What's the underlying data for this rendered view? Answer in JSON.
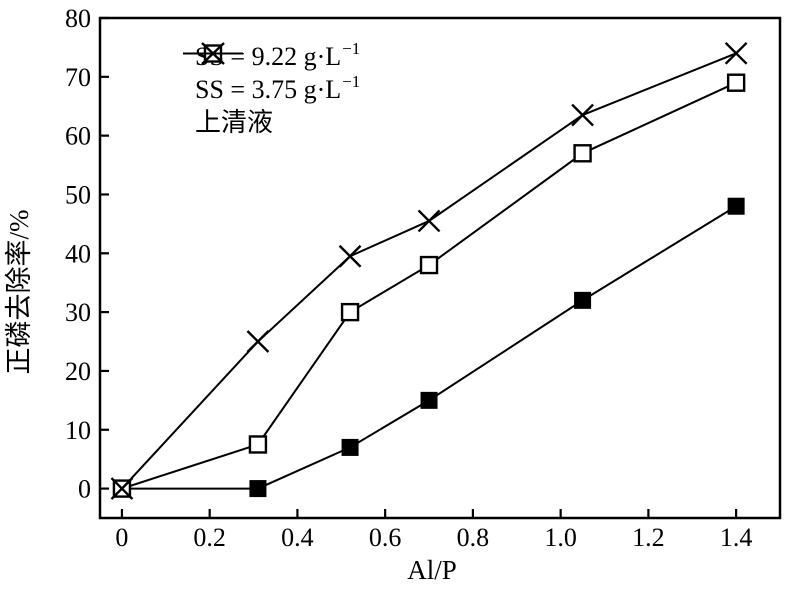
{
  "figure": {
    "background": "#ffffff",
    "ink_color": "#000000"
  },
  "chart_data": {
    "type": "line",
    "xlabel": "Al/P",
    "ylabel": "正磷去除率/%",
    "xlim": [
      -0.05,
      1.5
    ],
    "ylim": [
      -5,
      80
    ],
    "grid": false,
    "legend_position": "upper-left-inside",
    "x": [
      0,
      0.31,
      0.52,
      0.7,
      1.05,
      1.4
    ],
    "series": [
      {
        "name": "SS = 9.22 g·L⁻¹",
        "marker": "filled-square",
        "color": "#000000",
        "values": [
          0,
          0,
          7,
          15,
          32,
          48
        ]
      },
      {
        "name": "SS = 3.75 g·L⁻¹",
        "marker": "open-square",
        "color": "#000000",
        "values": [
          0,
          7.5,
          30,
          38,
          57,
          69
        ]
      },
      {
        "name": "上清液",
        "marker": "x-cross",
        "color": "#000000",
        "values": [
          0,
          25,
          39.5,
          45.5,
          63.5,
          74
        ]
      }
    ],
    "xticks": {
      "values": [
        0,
        0.2,
        0.4,
        0.6,
        0.8,
        1.0,
        1.2,
        1.4
      ],
      "labels": [
        "0",
        "0.2",
        "0.4",
        "0.6",
        "0.8",
        "1.0",
        "1.2",
        "1.4"
      ]
    },
    "yticks": {
      "values": [
        0,
        10,
        20,
        30,
        40,
        50,
        60,
        70,
        80
      ],
      "labels": [
        "0",
        "10",
        "20",
        "30",
        "40",
        "50",
        "60",
        "70",
        "80"
      ]
    }
  },
  "legend": {
    "entries": [
      {
        "main": "SS = 9.22 g·L",
        "sup": "−1",
        "marker": "filled-square"
      },
      {
        "main": "SS = 3.75 g·L",
        "sup": "−1",
        "marker": "open-square"
      },
      {
        "main": "上清液",
        "sup": "",
        "marker": "x-cross"
      }
    ]
  }
}
